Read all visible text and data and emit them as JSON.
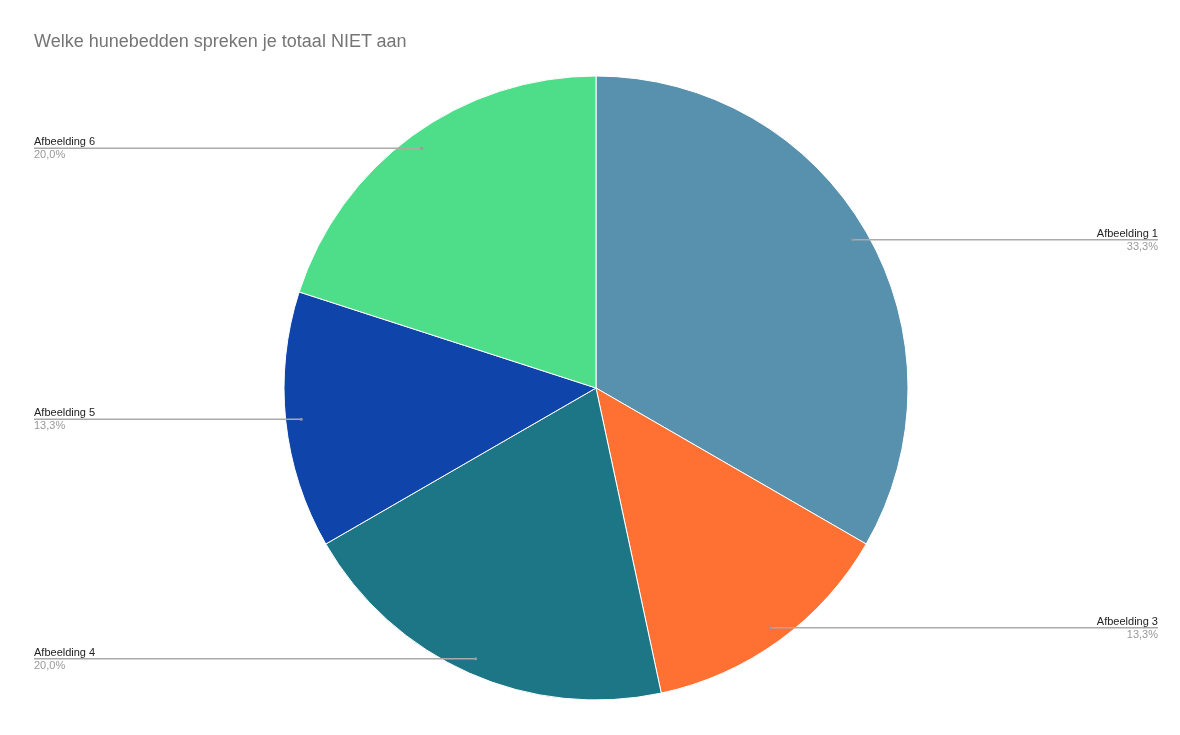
{
  "chart_data": {
    "type": "pie",
    "title": "Welke hunebedden spreken je totaal NIET aan",
    "categories": [
      "Afbeelding 1",
      "Afbeelding 3",
      "Afbeelding 4",
      "Afbeelding 5",
      "Afbeelding 6"
    ],
    "values": [
      33.3,
      13.3,
      20.0,
      13.3,
      20.0
    ],
    "colors": [
      "#5891ad",
      "#ff7033",
      "#1d7686",
      "#0f44aa",
      "#4ede8a"
    ],
    "value_labels": [
      "33,3%",
      "13,3%",
      "20,0%",
      "13,3%",
      "20,0%"
    ]
  }
}
